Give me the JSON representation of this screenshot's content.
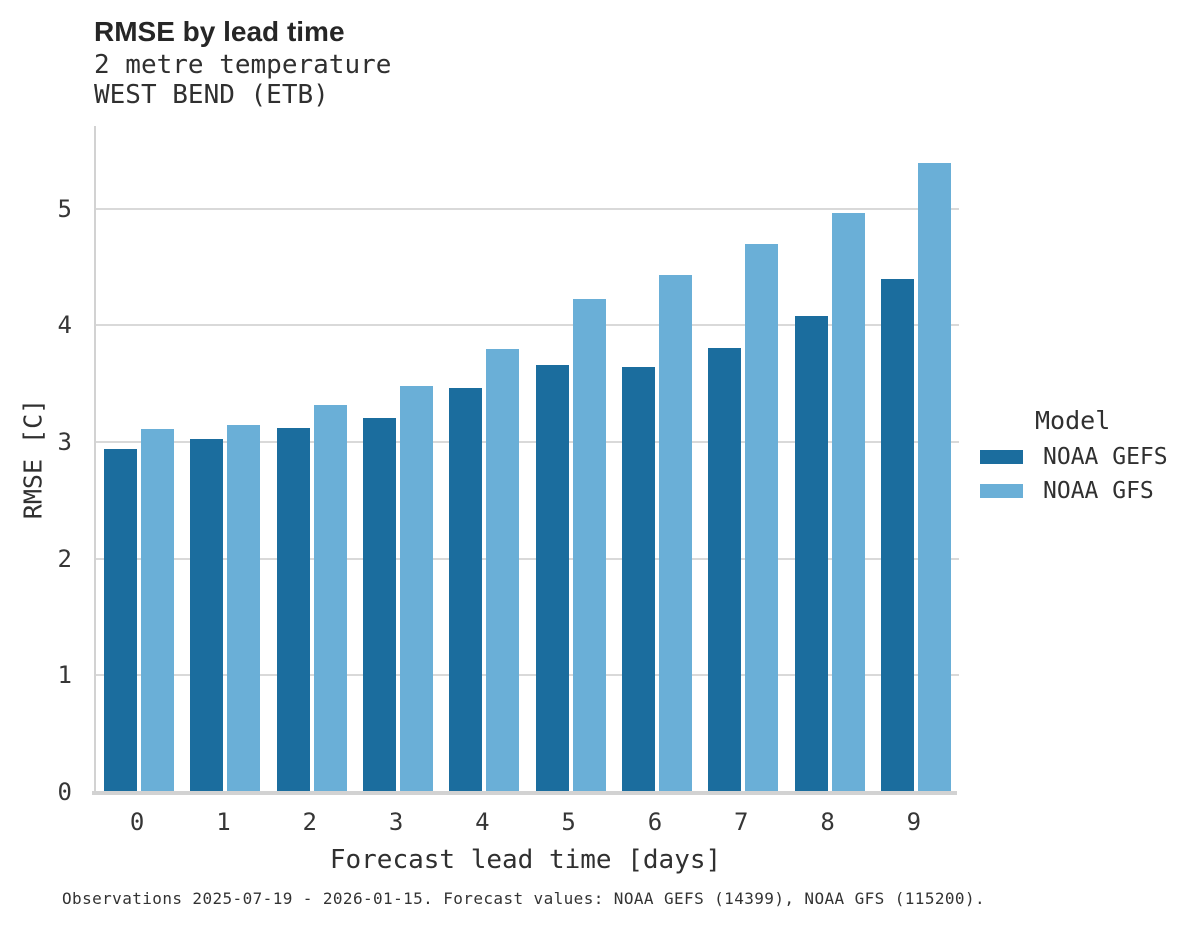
{
  "header": {
    "title": "RMSE by lead time",
    "subtitle_line1": "2 metre temperature",
    "subtitle_line2": "WEST BEND (ETB)"
  },
  "caption": "Observations 2025-07-19 - 2026-01-15. Forecast values: NOAA GEFS (14399), NOAA GFS (115200).",
  "legend": {
    "title": "Model",
    "entries": [
      {
        "label": "NOAA GEFS",
        "color": "#1b6d9e"
      },
      {
        "label": "NOAA GFS",
        "color": "#6aafd7"
      }
    ]
  },
  "colors": {
    "gefs_dark_blue": "#1b6d9e",
    "gfs_light_blue": "#6aafd7",
    "gridline": "#d9d9d9",
    "spine": "#d2d2d2",
    "text": "#303030"
  },
  "chart_data": {
    "type": "bar",
    "title": "RMSE by lead time",
    "subtitle_lines": [
      "2 metre temperature",
      "WEST BEND (ETB)"
    ],
    "categories": [
      0,
      1,
      2,
      3,
      4,
      5,
      6,
      7,
      8,
      9
    ],
    "series": [
      {
        "name": "NOAA GEFS",
        "color": "#1b6d9e",
        "values": [
          2.94,
          3.03,
          3.12,
          3.21,
          3.46,
          3.66,
          3.64,
          3.81,
          4.08,
          4.4
        ]
      },
      {
        "name": "NOAA GFS",
        "color": "#6aafd7",
        "values": [
          3.11,
          3.15,
          3.32,
          3.48,
          3.8,
          4.23,
          4.43,
          4.7,
          4.96,
          5.39
        ]
      }
    ],
    "xlabel": "Forecast lead time [days]",
    "ylabel": "RMSE [C]",
    "ylim": [
      0,
      5.71
    ],
    "yticks": [
      0,
      1,
      2,
      3,
      4,
      5
    ],
    "grid": "horizontal",
    "legend_title": "Model",
    "legend_position": "right"
  }
}
